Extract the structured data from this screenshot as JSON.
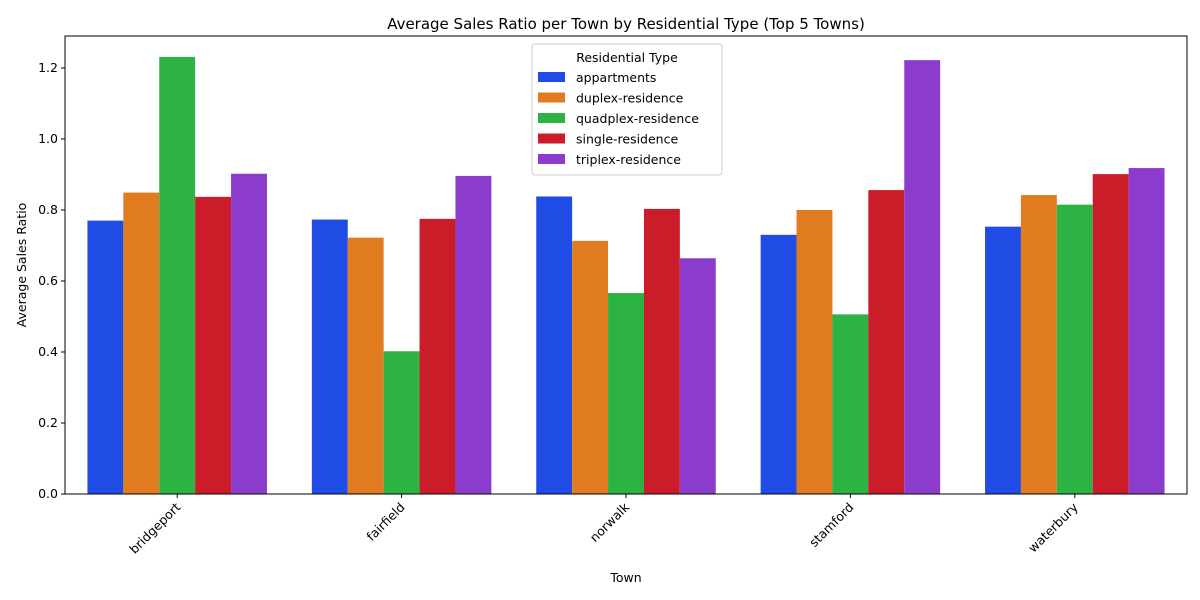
{
  "chart_data": {
    "type": "bar",
    "title": "Average Sales Ratio per Town by Residential Type (Top 5 Towns)",
    "xlabel": "Town",
    "ylabel": "Average Sales Ratio",
    "categories": [
      "bridgeport",
      "fairfield",
      "norwalk",
      "stamford",
      "waterbury"
    ],
    "ylim": [
      0,
      1.29
    ],
    "yticks": [
      "0.0",
      "0.2",
      "0.4",
      "0.6",
      "0.8",
      "1.0",
      "1.2"
    ],
    "grid": false,
    "legend": {
      "title": "Residential Type",
      "placement": "top-center"
    },
    "series": [
      {
        "name": "appartments",
        "color": "#1f4ce4",
        "values": [
          0.77,
          0.773,
          0.838,
          0.73,
          0.753
        ]
      },
      {
        "name": "duplex-residence",
        "color": "#e07c1f",
        "values": [
          0.849,
          0.722,
          0.713,
          0.8,
          0.842
        ]
      },
      {
        "name": "quadplex-residence",
        "color": "#2db344",
        "values": [
          1.231,
          0.402,
          0.566,
          0.506,
          0.815
        ]
      },
      {
        "name": "single-residence",
        "color": "#cb1c2a",
        "values": [
          0.837,
          0.775,
          0.803,
          0.856,
          0.901
        ]
      },
      {
        "name": "triplex-residence",
        "color": "#8b3ccc",
        "values": [
          0.902,
          0.896,
          0.664,
          1.222,
          0.918
        ]
      }
    ]
  }
}
